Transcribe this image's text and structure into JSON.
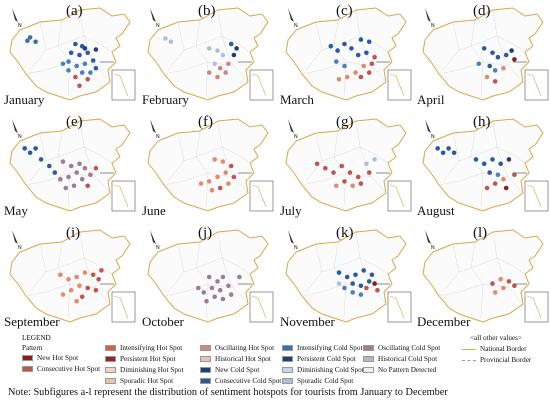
{
  "panels": [
    {
      "letter": "(a)",
      "month": "January",
      "dots": [
        [
          0.22,
          0.34,
          "#3b6fb0"
        ],
        [
          0.26,
          0.38,
          "#3b6fb0"
        ],
        [
          0.2,
          0.37,
          "#3b6fb0"
        ],
        [
          0.55,
          0.4,
          "#2b5b9e"
        ],
        [
          0.6,
          0.42,
          "#2b5b9e"
        ],
        [
          0.52,
          0.48,
          "#2b5b9e"
        ],
        [
          0.58,
          0.5,
          "#2b5b9e"
        ],
        [
          0.64,
          0.48,
          "#2b5b9e"
        ],
        [
          0.5,
          0.56,
          "#4d7fbf"
        ],
        [
          0.56,
          0.6,
          "#4d7fbf"
        ],
        [
          0.62,
          0.58,
          "#4d7fbf"
        ],
        [
          0.68,
          0.55,
          "#2b5b9e"
        ],
        [
          0.6,
          0.66,
          "#4d7fbf"
        ],
        [
          0.55,
          0.7,
          "#c2544d"
        ],
        [
          0.58,
          0.78,
          "#c2544d"
        ],
        [
          0.64,
          0.72,
          "#c2544d"
        ],
        [
          0.7,
          0.62,
          "#2b5b9e"
        ],
        [
          0.66,
          0.66,
          "#4d7fbf"
        ],
        [
          0.5,
          0.64,
          "#4d7fbf"
        ],
        [
          0.46,
          0.58,
          "#4d7fbf"
        ],
        [
          0.62,
          0.44,
          "#1e3f78"
        ],
        [
          0.7,
          0.45,
          "#1e3f78"
        ]
      ]
    },
    {
      "letter": "(b)",
      "month": "February",
      "dots": [
        [
          0.2,
          0.35,
          "#aebfdc"
        ],
        [
          0.24,
          0.38,
          "#aebfdc"
        ],
        [
          0.52,
          0.44,
          "#aebfdc"
        ],
        [
          0.58,
          0.46,
          "#aebfdc"
        ],
        [
          0.62,
          0.5,
          "#aebfdc"
        ],
        [
          0.56,
          0.58,
          "#aebfdc"
        ],
        [
          0.6,
          0.62,
          "#c98b80"
        ],
        [
          0.64,
          0.66,
          "#c98b80"
        ],
        [
          0.58,
          0.7,
          "#c98b80"
        ],
        [
          0.52,
          0.66,
          "#c98b80"
        ],
        [
          0.66,
          0.58,
          "#c98b80"
        ],
        [
          0.7,
          0.5,
          "#1e3f78"
        ],
        [
          0.72,
          0.44,
          "#1e3f78"
        ],
        [
          0.68,
          0.4,
          "#2b5b9e"
        ]
      ]
    },
    {
      "letter": "(c)",
      "month": "March",
      "dots": [
        [
          0.4,
          0.42,
          "#2b5b9e"
        ],
        [
          0.45,
          0.46,
          "#2b5b9e"
        ],
        [
          0.5,
          0.4,
          "#2b5b9e"
        ],
        [
          0.55,
          0.44,
          "#2b5b9e"
        ],
        [
          0.62,
          0.36,
          "#2b5b9e"
        ],
        [
          0.68,
          0.38,
          "#2b5b9e"
        ],
        [
          0.6,
          0.5,
          "#2b5b9e"
        ],
        [
          0.66,
          0.48,
          "#2b5b9e"
        ],
        [
          0.72,
          0.52,
          "#c2544d"
        ],
        [
          0.7,
          0.58,
          "#c2544d"
        ],
        [
          0.64,
          0.6,
          "#e08c70"
        ],
        [
          0.58,
          0.66,
          "#e08c70"
        ],
        [
          0.52,
          0.7,
          "#e08c70"
        ],
        [
          0.46,
          0.72,
          "#e08c70"
        ],
        [
          0.62,
          0.7,
          "#c2544d"
        ],
        [
          0.68,
          0.66,
          "#c2544d"
        ],
        [
          0.5,
          0.6,
          "#4d7fbf"
        ],
        [
          0.44,
          0.56,
          "#4d7fbf"
        ]
      ]
    },
    {
      "letter": "(d)",
      "month": "April",
      "dots": [
        [
          0.52,
          0.44,
          "#2b5b9e"
        ],
        [
          0.58,
          0.48,
          "#2b5b9e"
        ],
        [
          0.62,
          0.52,
          "#2b5b9e"
        ],
        [
          0.68,
          0.5,
          "#2b5b9e"
        ],
        [
          0.72,
          0.46,
          "#1e3f78"
        ],
        [
          0.74,
          0.54,
          "#8b1a1a"
        ],
        [
          0.56,
          0.6,
          "#2b5b9e"
        ],
        [
          0.6,
          0.64,
          "#4d7fbf"
        ],
        [
          0.66,
          0.62,
          "#e08c70"
        ],
        [
          0.54,
          0.7,
          "#e08c70"
        ],
        [
          0.6,
          0.74,
          "#c2544d"
        ],
        [
          0.48,
          0.58,
          "#4d7fbf"
        ]
      ]
    },
    {
      "letter": "(e)",
      "month": "May",
      "dots": [
        [
          0.18,
          0.34,
          "#2b5b9e"
        ],
        [
          0.22,
          0.38,
          "#2b5b9e"
        ],
        [
          0.26,
          0.34,
          "#2b5b9e"
        ],
        [
          0.3,
          0.44,
          "#2b5b9e"
        ],
        [
          0.46,
          0.46,
          "#9e7d93"
        ],
        [
          0.52,
          0.5,
          "#9e7d93"
        ],
        [
          0.58,
          0.48,
          "#9e7d93"
        ],
        [
          0.62,
          0.52,
          "#9e7d93"
        ],
        [
          0.56,
          0.56,
          "#9e7d93"
        ],
        [
          0.5,
          0.6,
          "#9e7d93"
        ],
        [
          0.44,
          0.62,
          "#9e7d93"
        ],
        [
          0.6,
          0.62,
          "#9e7d93"
        ],
        [
          0.66,
          0.58,
          "#9e7d93"
        ],
        [
          0.54,
          0.68,
          "#9e7d93"
        ],
        [
          0.48,
          0.7,
          "#9e7d93"
        ],
        [
          0.64,
          0.68,
          "#c2544d"
        ],
        [
          0.7,
          0.52,
          "#c2544d"
        ],
        [
          0.4,
          0.56,
          "#2b5b9e"
        ],
        [
          0.36,
          0.5,
          "#2b5b9e"
        ]
      ]
    },
    {
      "letter": "(f)",
      "month": "June",
      "dots": [
        [
          0.56,
          0.44,
          "#e08c70"
        ],
        [
          0.62,
          0.46,
          "#e08c70"
        ],
        [
          0.68,
          0.5,
          "#c2544d"
        ],
        [
          0.64,
          0.56,
          "#e08c70"
        ],
        [
          0.58,
          0.6,
          "#e08c70"
        ],
        [
          0.52,
          0.64,
          "#e08c70"
        ],
        [
          0.46,
          0.66,
          "#e08c70"
        ],
        [
          0.54,
          0.72,
          "#e08c70"
        ],
        [
          0.6,
          0.7,
          "#c2544d"
        ],
        [
          0.7,
          0.6,
          "#c2544d"
        ],
        [
          0.66,
          0.66,
          "#e08c70"
        ]
      ]
    },
    {
      "letter": "(g)",
      "month": "July",
      "dots": [
        [
          0.3,
          0.48,
          "#c2544d"
        ],
        [
          0.36,
          0.52,
          "#c2544d"
        ],
        [
          0.42,
          0.56,
          "#c2544d"
        ],
        [
          0.48,
          0.5,
          "#c2544d"
        ],
        [
          0.54,
          0.56,
          "#c2544d"
        ],
        [
          0.6,
          0.6,
          "#c2544d"
        ],
        [
          0.5,
          0.64,
          "#c2544d"
        ],
        [
          0.44,
          0.68,
          "#e08c70"
        ],
        [
          0.56,
          0.68,
          "#e08c70"
        ],
        [
          0.62,
          0.66,
          "#c2544d"
        ],
        [
          0.68,
          0.56,
          "#c2544d"
        ],
        [
          0.66,
          0.48,
          "#aebfdc"
        ],
        [
          0.72,
          0.44,
          "#aebfdc"
        ]
      ]
    },
    {
      "letter": "(h)",
      "month": "August",
      "dots": [
        [
          0.18,
          0.34,
          "#2b5b9e"
        ],
        [
          0.22,
          0.38,
          "#2b5b9e"
        ],
        [
          0.26,
          0.34,
          "#2b5b9e"
        ],
        [
          0.3,
          0.38,
          "#2b5b9e"
        ],
        [
          0.46,
          0.44,
          "#2b5b9e"
        ],
        [
          0.52,
          0.48,
          "#2b5b9e"
        ],
        [
          0.58,
          0.44,
          "#2b5b9e"
        ],
        [
          0.64,
          0.48,
          "#2b5b9e"
        ],
        [
          0.7,
          0.44,
          "#1e3f78"
        ],
        [
          0.56,
          0.56,
          "#2b5b9e"
        ],
        [
          0.62,
          0.58,
          "#4d7fbf"
        ],
        [
          0.66,
          0.62,
          "#e08c70"
        ],
        [
          0.6,
          0.66,
          "#c2544d"
        ],
        [
          0.54,
          0.7,
          "#c2544d"
        ],
        [
          0.68,
          0.7,
          "#8b1a1a"
        ],
        [
          0.74,
          0.58,
          "#c2544d"
        ]
      ]
    },
    {
      "letter": "(i)",
      "month": "September",
      "dots": [
        [
          0.44,
          0.48,
          "#e08c70"
        ],
        [
          0.5,
          0.52,
          "#e08c70"
        ],
        [
          0.56,
          0.5,
          "#e08c70"
        ],
        [
          0.62,
          0.46,
          "#e08c70"
        ],
        [
          0.68,
          0.48,
          "#c2544d"
        ],
        [
          0.72,
          0.52,
          "#c2544d"
        ],
        [
          0.58,
          0.58,
          "#e08c70"
        ],
        [
          0.64,
          0.6,
          "#c2544d"
        ],
        [
          0.52,
          0.62,
          "#e08c70"
        ],
        [
          0.46,
          0.66,
          "#e08c70"
        ],
        [
          0.6,
          0.68,
          "#c2544d"
        ],
        [
          0.7,
          0.62,
          "#c2544d"
        ],
        [
          0.56,
          0.72,
          "#e08c70"
        ],
        [
          0.74,
          0.44,
          "#c2544d"
        ]
      ]
    },
    {
      "letter": "(j)",
      "month": "October",
      "dots": [
        [
          0.52,
          0.5,
          "#9e7d93"
        ],
        [
          0.58,
          0.54,
          "#9e7d93"
        ],
        [
          0.62,
          0.5,
          "#9e7d93"
        ],
        [
          0.54,
          0.6,
          "#9e7d93"
        ],
        [
          0.6,
          0.62,
          "#9e7d93"
        ],
        [
          0.66,
          0.58,
          "#9e7d93"
        ],
        [
          0.48,
          0.64,
          "#9e7d93"
        ],
        [
          0.56,
          0.68,
          "#9e7d93"
        ],
        [
          0.62,
          0.7,
          "#9e7d93"
        ],
        [
          0.5,
          0.72,
          "#9e7d93"
        ],
        [
          0.44,
          0.6,
          "#9e7d93"
        ],
        [
          0.68,
          0.66,
          "#9e7d93"
        ],
        [
          0.74,
          0.5,
          "#9e7d93"
        ]
      ]
    },
    {
      "letter": "(k)",
      "month": "November",
      "dots": [
        [
          0.46,
          0.46,
          "#2b5b9e"
        ],
        [
          0.52,
          0.5,
          "#2b5b9e"
        ],
        [
          0.58,
          0.48,
          "#2b5b9e"
        ],
        [
          0.64,
          0.44,
          "#2b5b9e"
        ],
        [
          0.7,
          0.48,
          "#2b5b9e"
        ],
        [
          0.56,
          0.56,
          "#2b5b9e"
        ],
        [
          0.62,
          0.58,
          "#2b5b9e"
        ],
        [
          0.68,
          0.54,
          "#2b5b9e"
        ],
        [
          0.5,
          0.6,
          "#4d7fbf"
        ],
        [
          0.56,
          0.64,
          "#4d7fbf"
        ],
        [
          0.62,
          0.66,
          "#4d7fbf"
        ],
        [
          0.66,
          0.6,
          "#c2544d"
        ],
        [
          0.72,
          0.56,
          "#8b1a1a"
        ],
        [
          0.74,
          0.62,
          "#c2544d"
        ],
        [
          0.46,
          0.56,
          "#aebfdc"
        ]
      ]
    },
    {
      "letter": "(l)",
      "month": "December",
      "dots": [
        [
          0.58,
          0.56,
          "#c2544d"
        ],
        [
          0.64,
          0.52,
          "#e08c70"
        ],
        [
          0.7,
          0.54,
          "#c2544d"
        ],
        [
          0.66,
          0.6,
          "#e08c70"
        ],
        [
          0.6,
          0.64,
          "#e08c70"
        ],
        [
          0.74,
          0.58,
          "#c2544d"
        ]
      ]
    }
  ],
  "legend": {
    "title": "LEGEND",
    "subtitle": "Pattern",
    "items": [
      {
        "label": "New Hot Spot",
        "color": "#8b1a1a",
        "col": 0,
        "row": 0
      },
      {
        "label": "Consecutive Hot Spot",
        "color": "#c2544d",
        "col": 0,
        "row": 1
      },
      {
        "label": "Intensifying Hot Spot",
        "color": "#d9603b",
        "col": 1,
        "row": 0
      },
      {
        "label": "Persistent Hot Spot",
        "color": "#a02020",
        "col": 1,
        "row": 1
      },
      {
        "label": "Diminishing Hot Spot",
        "color": "#f2d2c2",
        "col": 1,
        "row": 2
      },
      {
        "label": "Sporadic Hot Spot",
        "color": "#f0c0a8",
        "col": 1,
        "row": 3
      },
      {
        "label": "Oscillating Hot Spot",
        "color": "#c98b80",
        "col": 2,
        "row": 0
      },
      {
        "label": "Historical Hot Spot",
        "color": "#e6c3b4",
        "col": 2,
        "row": 1
      },
      {
        "label": "New Cold Spot",
        "color": "#1e3f78",
        "col": 2,
        "row": 2
      },
      {
        "label": "Consecutive Cold Spot",
        "color": "#2b5b9e",
        "col": 2,
        "row": 3
      },
      {
        "label": "Intensifying Cold Spot",
        "color": "#3b6fb0",
        "col": 3,
        "row": 0
      },
      {
        "label": "Persistent Cold Spot",
        "color": "#1e3f78",
        "col": 3,
        "row": 1
      },
      {
        "label": "Diminishing Cold Spot",
        "color": "#c9d6ea",
        "col": 3,
        "row": 2
      },
      {
        "label": "Sporadic Cold Spot",
        "color": "#aebfdc",
        "col": 3,
        "row": 3
      },
      {
        "label": "Oscillating Cold Spot",
        "color": "#9e7d93",
        "col": 4,
        "row": 0
      },
      {
        "label": "Historical Cold Spot",
        "color": "#b5b5c8",
        "col": 4,
        "row": 1
      },
      {
        "label": "No Pattern Detected",
        "color": "#f2f2f2",
        "col": 4,
        "row": 2
      }
    ],
    "other_values": "<all other values>",
    "national_border": "National Border",
    "provincial_border": "Provincial Border"
  },
  "note": "Note: Subfigures a-l represent the distribution of sentiment hotspots for tourists from January to December"
}
